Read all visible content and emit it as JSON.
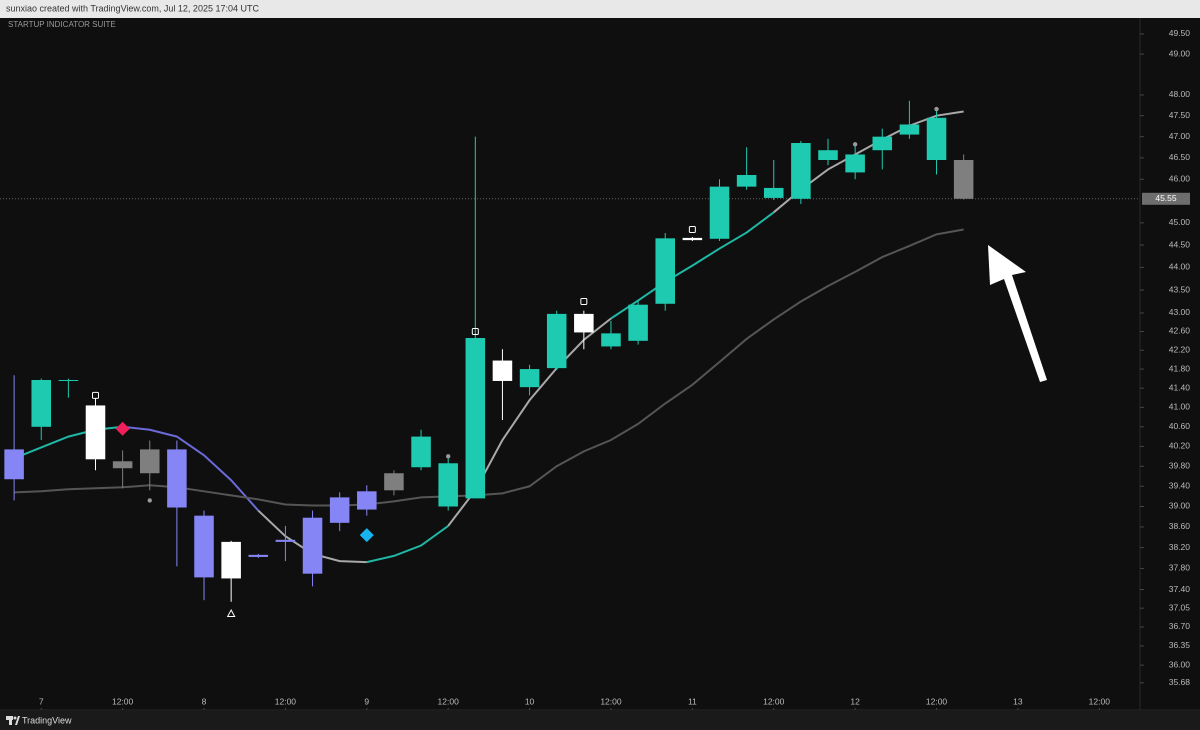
{
  "header": "sunxiao created with TradingView.com, Jul 12, 2025 17:04 UTC",
  "footer": "TradingView",
  "chart_data": {
    "type": "candlestick",
    "title": "STARTUP INDICATOR SUITE",
    "x": [
      0,
      1,
      2,
      3,
      4,
      5,
      6,
      7,
      8,
      9,
      10,
      11,
      12,
      13,
      14,
      15,
      16,
      17,
      18,
      19,
      20,
      21,
      22,
      23,
      24,
      25,
      26,
      27,
      28,
      29,
      30,
      31,
      32,
      33,
      34,
      35
    ],
    "open": [
      39.54,
      40.6,
      41.55,
      41.04,
      39.9,
      40.14,
      40.14,
      38.82,
      38.31,
      38.06,
      38.35,
      38.78,
      39.18,
      39.3,
      39.66,
      39.78,
      39.0,
      39.16,
      41.98,
      41.42,
      41.82,
      42.98,
      42.28,
      42.4,
      43.2,
      44.66,
      44.64,
      45.83,
      45.57,
      45.55,
      46.45,
      46.16,
      46.68,
      47.05,
      46.45,
      46.45
    ],
    "high": [
      41.67,
      41.6,
      41.6,
      41.19,
      40.12,
      40.32,
      40.32,
      38.92,
      38.33,
      38.08,
      38.62,
      38.92,
      39.28,
      39.42,
      39.72,
      40.54,
      40.02,
      47.0,
      42.22,
      41.89,
      43.05,
      43.05,
      42.83,
      43.27,
      44.77,
      44.68,
      46.0,
      46.75,
      46.45,
      46.9,
      46.95,
      46.82,
      47.19,
      47.86,
      47.66,
      46.58
    ],
    "low": [
      39.12,
      40.33,
      41.2,
      39.72,
      39.36,
      39.32,
      37.84,
      37.2,
      37.17,
      38.0,
      37.94,
      37.46,
      38.52,
      38.82,
      39.22,
      39.72,
      38.92,
      39.16,
      40.74,
      41.25,
      41.78,
      42.22,
      42.22,
      42.32,
      43.05,
      44.59,
      44.59,
      45.76,
      45.52,
      45.43,
      46.33,
      46.0,
      46.23,
      46.95,
      46.11,
      45.53
    ],
    "close": [
      40.14,
      41.57,
      41.57,
      39.94,
      39.76,
      39.66,
      38.98,
      37.63,
      37.61,
      38.02,
      38.31,
      37.7,
      38.68,
      38.94,
      39.32,
      40.4,
      39.86,
      42.46,
      41.55,
      41.8,
      42.98,
      42.58,
      42.56,
      43.18,
      44.65,
      44.61,
      45.83,
      46.1,
      45.8,
      46.85,
      46.68,
      46.58,
      47.0,
      47.29,
      47.45,
      45.55
    ],
    "colors": [
      "#8585f5",
      "#1ecbb0",
      "#1ecbb0",
      "#ffffff",
      "#7f7f7f",
      "#7f7f7f",
      "#8585f5",
      "#8585f5",
      "#ffffff",
      "#8585f5",
      "#8585f5",
      "#8585f5",
      "#8585f5",
      "#8585f5",
      "#7f7f7f",
      "#1ecbb0",
      "#1ecbb0",
      "#1ecbb0",
      "#ffffff",
      "#1ecbb0",
      "#1ecbb0",
      "#ffffff",
      "#1ecbb0",
      "#1ecbb0",
      "#1ecbb0",
      "#ffffff",
      "#1ecbb0",
      "#1ecbb0",
      "#1ecbb0",
      "#1ecbb0",
      "#1ecbb0",
      "#1ecbb0",
      "#1ecbb0",
      "#1ecbb0",
      "#1ecbb0",
      "#7f7f7f"
    ],
    "lines": [
      {
        "values": [
          39.96,
          40.18,
          40.4,
          40.54,
          40.6,
          40.54,
          40.4,
          40.02,
          39.52,
          38.92,
          38.42,
          38.08,
          37.94,
          37.92,
          38.04,
          38.24,
          38.62,
          39.32,
          40.33,
          41.15,
          41.82,
          42.42,
          42.88,
          43.27,
          43.68,
          44.04,
          44.42,
          44.78,
          45.24,
          45.76,
          46.23,
          46.58,
          46.93,
          47.26,
          47.5,
          47.6
        ],
        "colors": [
          "#1fb8a5",
          "#1fb8a5",
          "#1fb8a5",
          "#1fb8a5",
          "#6a6ad8",
          "#6a6ad8",
          "#6a6ad8",
          "#6a6ad8",
          "#6a6ad8",
          "#a9a9a9",
          "#a9a9a9",
          "#a9a9a9",
          "#a9a9a9",
          "#1fb8a5",
          "#1fb8a5",
          "#1fb8a5",
          "#a9a9a9",
          "#a9a9a9",
          "#a9a9a9",
          "#a9a9a9",
          "#a9a9a9",
          "#a9a9a9",
          "#1fb8a5",
          "#1fb8a5",
          "#1fb8a5",
          "#1fb8a5",
          "#1fb8a5",
          "#1fb8a5",
          "#a9a9a9",
          "#a9a9a9",
          "#a9a9a9",
          "#a9a9a9",
          "#a9a9a9",
          "#a9a9a9",
          "#a9a9a9",
          "#a9a9a9"
        ]
      },
      {
        "values": [
          39.28,
          39.3,
          39.34,
          39.36,
          39.38,
          39.42,
          39.38,
          39.3,
          39.22,
          39.14,
          39.04,
          39.02,
          39.02,
          39.04,
          39.1,
          39.18,
          39.2,
          39.22,
          39.26,
          39.4,
          39.8,
          40.1,
          40.33,
          40.66,
          41.08,
          41.47,
          41.95,
          42.44,
          42.86,
          43.25,
          43.59,
          43.9,
          44.23,
          44.48,
          44.74,
          44.85
        ],
        "color": "#555555"
      }
    ],
    "markers": [
      {
        "shape": "square",
        "x": 3,
        "y": 41.25,
        "color": "#ffffff"
      },
      {
        "shape": "square",
        "x": 17,
        "y": 42.6,
        "color": "#ffffff"
      },
      {
        "shape": "square",
        "x": 21,
        "y": 43.25,
        "color": "#ffffff"
      },
      {
        "shape": "square",
        "x": 25,
        "y": 44.85,
        "color": "#ffffff"
      },
      {
        "shape": "triangle",
        "x": 8,
        "y": 36.95,
        "color": "#ffffff"
      },
      {
        "shape": "diamond",
        "x": 4,
        "y": 40.56,
        "color": "#f0205a"
      },
      {
        "shape": "diamond",
        "x": 13,
        "y": 38.44,
        "color": "#18b4f0"
      },
      {
        "shape": "dot",
        "x": 5,
        "y": 39.12,
        "color": "#9a9a9a"
      },
      {
        "shape": "dot",
        "x": 16,
        "y": 40.0,
        "color": "#9a9a9a"
      },
      {
        "shape": "dot",
        "x": 31,
        "y": 46.82,
        "color": "#9a9a9a"
      },
      {
        "shape": "dot",
        "x": 34,
        "y": 47.66,
        "color": "#9a9a9a"
      }
    ],
    "last_price": {
      "value": 45.55,
      "label": "45.55"
    },
    "xlim": [
      -0.52,
      41.5
    ],
    "xticks": [
      {
        "value": 1,
        "label": "7"
      },
      {
        "value": 4,
        "label": "12:00"
      },
      {
        "value": 7,
        "label": "8"
      },
      {
        "value": 10,
        "label": "12:00"
      },
      {
        "value": 13,
        "label": "9"
      },
      {
        "value": 16,
        "label": "12:00"
      },
      {
        "value": 19,
        "label": "10"
      },
      {
        "value": 22,
        "label": "12:00"
      },
      {
        "value": 25,
        "label": "11"
      },
      {
        "value": 28,
        "label": "12:00"
      },
      {
        "value": 31,
        "label": "12"
      },
      {
        "value": 34,
        "label": "12:00"
      },
      {
        "value": 37,
        "label": "13"
      },
      {
        "value": 40,
        "label": "12:00"
      }
    ],
    "ylim": [
      35.23,
      49.9
    ],
    "log_scale": true,
    "yticks": [
      {
        "value": 49.5,
        "label": "49.50"
      },
      {
        "value": 49,
        "label": "49.00"
      },
      {
        "value": 48,
        "label": "48.00"
      },
      {
        "value": 47.5,
        "label": "47.50"
      },
      {
        "value": 47,
        "label": "47.00"
      },
      {
        "value": 46.5,
        "label": "46.50"
      },
      {
        "value": 46,
        "label": "46.00"
      },
      {
        "value": 45,
        "label": "45.00"
      },
      {
        "value": 44.5,
        "label": "44.50"
      },
      {
        "value": 44,
        "label": "44.00"
      },
      {
        "value": 43.5,
        "label": "43.50"
      },
      {
        "value": 43,
        "label": "43.00"
      },
      {
        "value": 42.6,
        "label": "42.60"
      },
      {
        "value": 42.2,
        "label": "42.20"
      },
      {
        "value": 41.8,
        "label": "41.80"
      },
      {
        "value": 41.4,
        "label": "41.40"
      },
      {
        "value": 41,
        "label": "41.00"
      },
      {
        "value": 40.6,
        "label": "40.60"
      },
      {
        "value": 40.2,
        "label": "40.20"
      },
      {
        "value": 39.8,
        "label": "39.80"
      },
      {
        "value": 39.4,
        "label": "39.40"
      },
      {
        "value": 39,
        "label": "39.00"
      },
      {
        "value": 38.6,
        "label": "38.60"
      },
      {
        "value": 38.2,
        "label": "38.20"
      },
      {
        "value": 37.8,
        "label": "37.80"
      },
      {
        "value": 37.4,
        "label": "37.40"
      },
      {
        "value": 37.05,
        "label": "37.05"
      },
      {
        "value": 36.7,
        "label": "36.70"
      },
      {
        "value": 36.35,
        "label": "36.35"
      },
      {
        "value": 36,
        "label": "36.00"
      },
      {
        "value": 35.68,
        "label": "35.68"
      }
    ]
  }
}
